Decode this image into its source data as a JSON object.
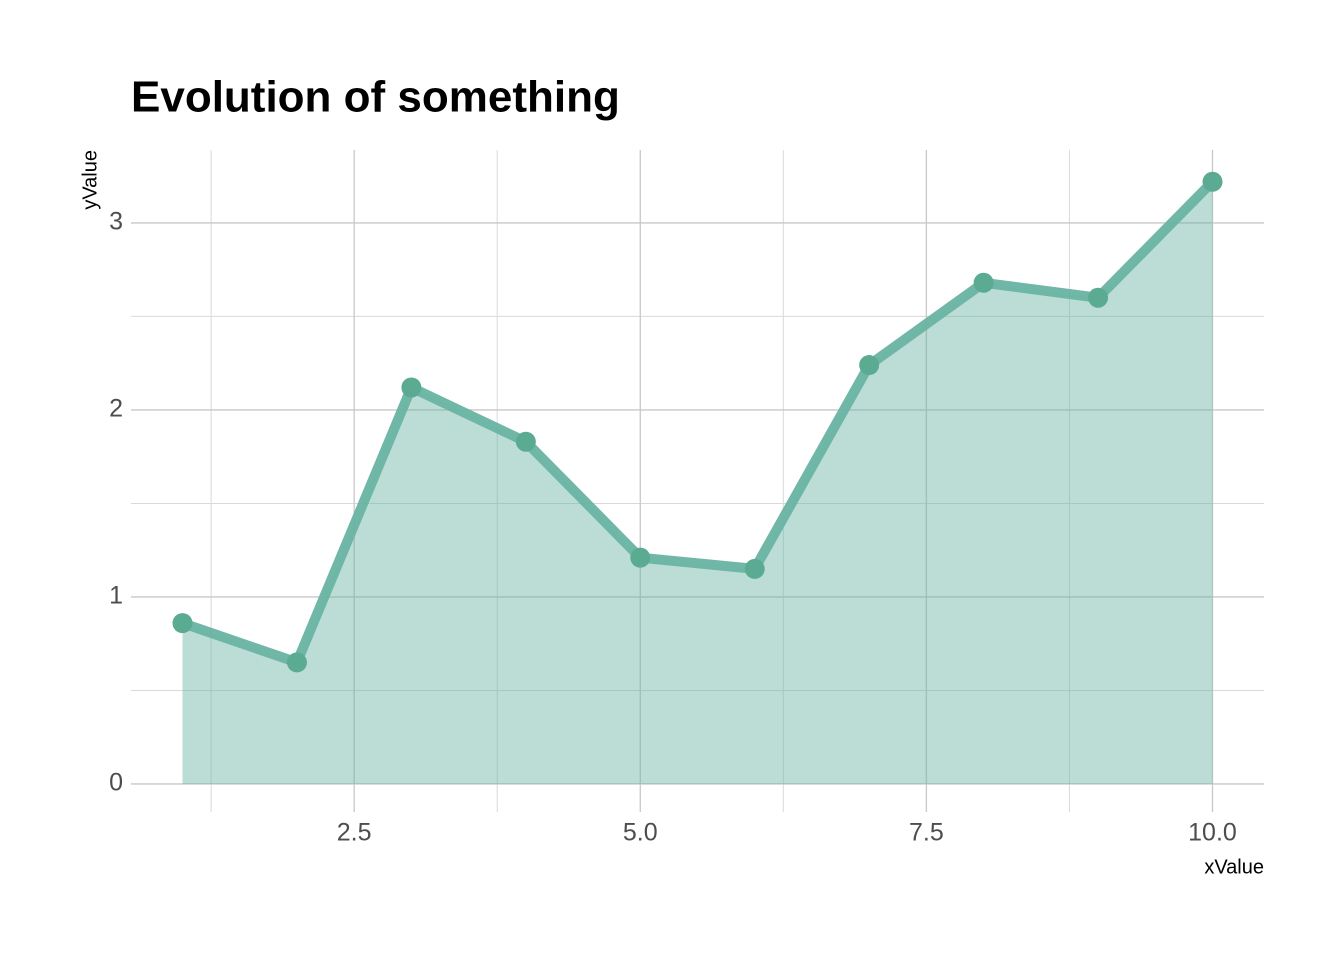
{
  "chart_data": {
    "type": "area",
    "title": "Evolution of something",
    "x_label": "xValue",
    "y_label": "yValue",
    "x": [
      1,
      2,
      3,
      4,
      5,
      6,
      7,
      8,
      9,
      10
    ],
    "series": [
      {
        "color": "#69b3a2",
        "values": [
          0.86,
          0.65,
          2.12,
          1.83,
          1.21,
          1.15,
          2.24,
          2.68,
          2.6,
          3.22
        ]
      }
    ],
    "xlim": [
      0.55,
      10.45
    ],
    "ylim": [
      -0.15,
      3.39
    ],
    "xticks": [
      2.5,
      {
        "value": 5,
        "label": "5.0"
      },
      7.5,
      {
        "value": 10,
        "label": "10.0"
      }
    ],
    "yticks": [
      0,
      1,
      2,
      3
    ],
    "x_minor_ticks": [
      1.25,
      3.75,
      6.25,
      8.75
    ],
    "y_minor_ticks": [
      0.5,
      1.5,
      2.5
    ],
    "grid": true
  }
}
